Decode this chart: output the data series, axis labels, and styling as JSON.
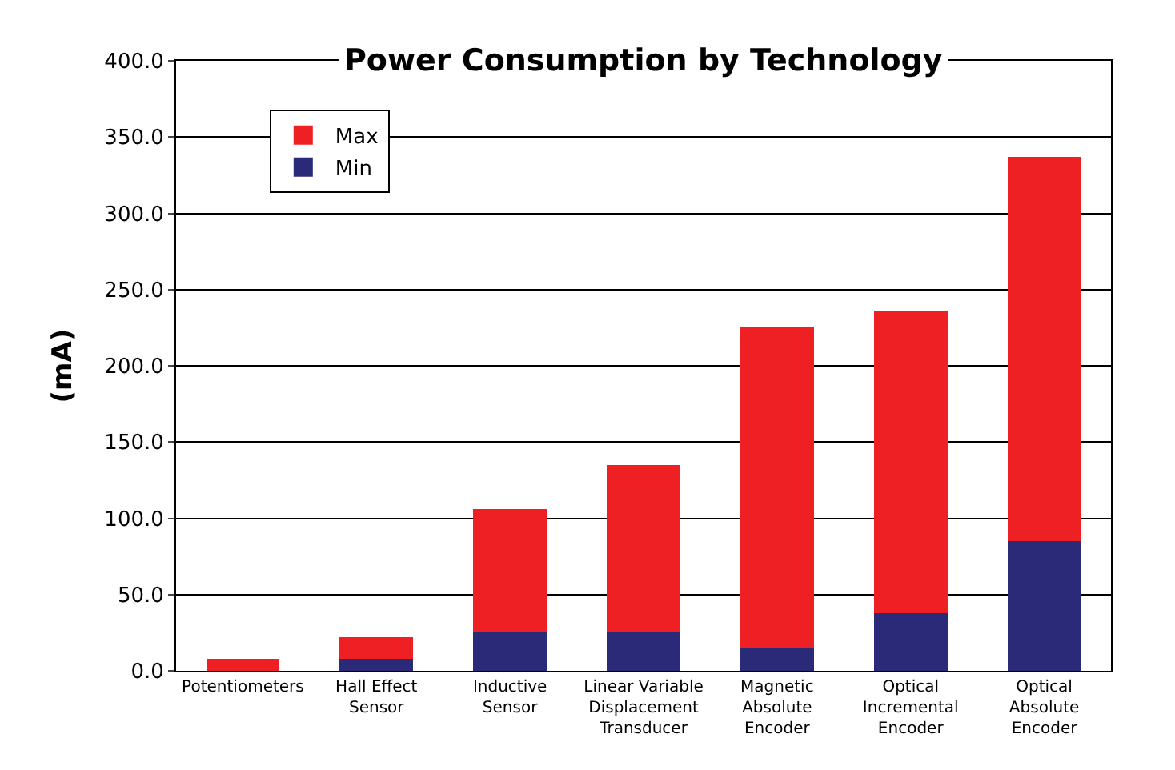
{
  "chart_data": {
    "type": "bar",
    "title": "Power Consumption by Technology",
    "ylabel": "(mA)",
    "categories": [
      "Potentiometers",
      "Hall Effect Sensor",
      "Inductive Sensor",
      "Linear Variable Displacement Transducer",
      "Magnetic Absolute Encoder",
      "Optical Incremental Encoder",
      "Optical Absolute Encoder"
    ],
    "stacked": true,
    "series": [
      {
        "name": "Min",
        "color": "#2b2a78",
        "values": [
          0,
          8,
          25,
          25,
          15,
          38,
          85
        ]
      },
      {
        "name": "Max",
        "color": "#ee2024",
        "values": [
          8,
          14,
          81,
          110,
          210,
          198,
          252
        ]
      }
    ],
    "ylim": [
      0,
      400
    ],
    "yticks": [
      {
        "value": 0,
        "label": "0.0"
      },
      {
        "value": 50,
        "label": "50.0"
      },
      {
        "value": 100,
        "label": "100.0"
      },
      {
        "value": 150,
        "label": "150.0"
      },
      {
        "value": 200,
        "label": "200.0"
      },
      {
        "value": 250,
        "label": "250.0"
      },
      {
        "value": 300,
        "label": "300.0"
      },
      {
        "value": 350,
        "label": "350.0"
      },
      {
        "value": 400,
        "label": "400.0"
      }
    ],
    "grid": "y",
    "legend": "top left"
  }
}
